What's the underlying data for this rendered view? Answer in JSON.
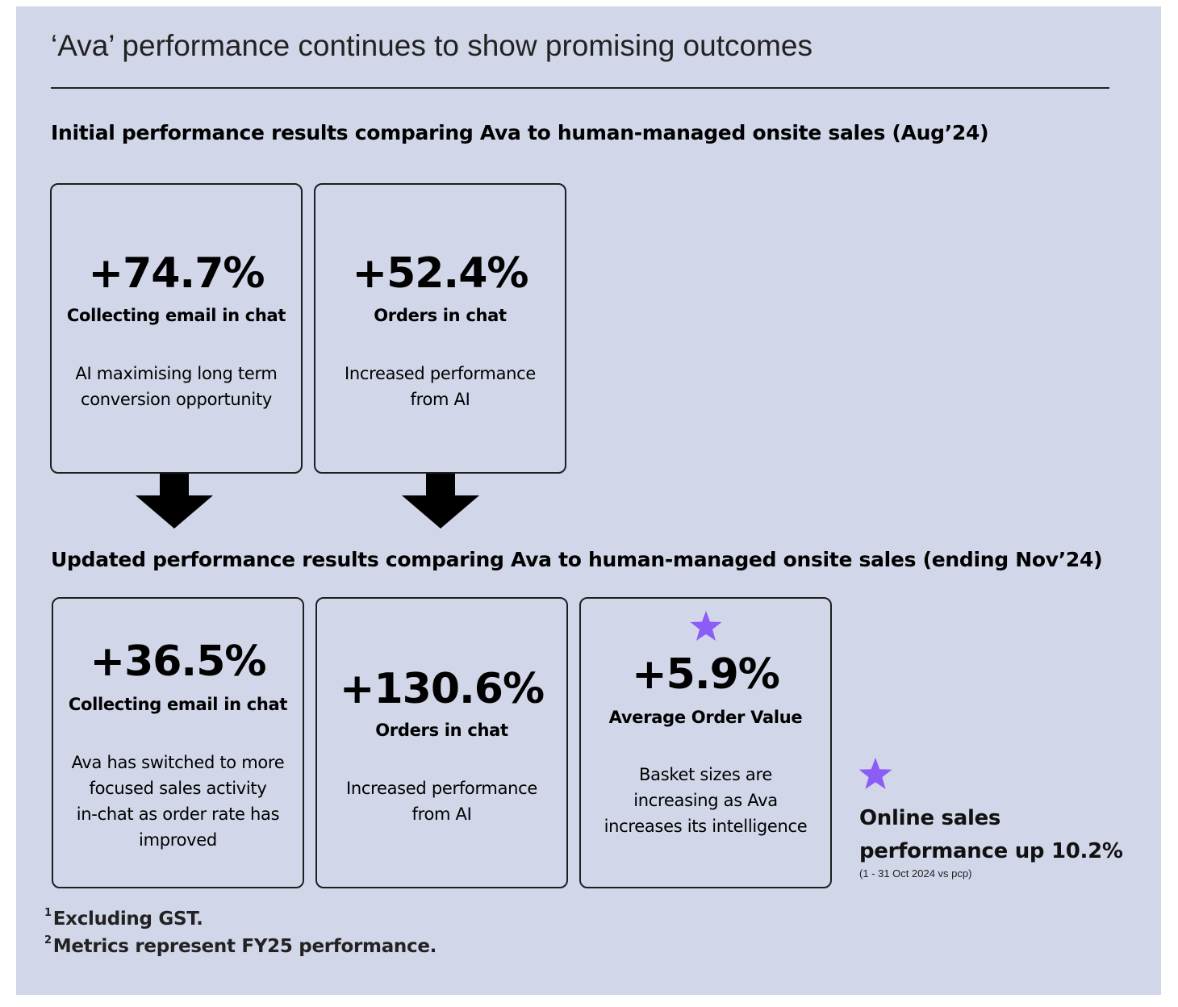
{
  "title": "‘Ava’ performance continues to show promising outcomes",
  "initial": {
    "heading": "Initial performance results comparing Ava to human-managed onsite sales (Aug’24)",
    "cards": [
      {
        "value": "+74.7%",
        "label": "Collecting email in chat",
        "description": [
          "AI maximising long term",
          "conversion opportunity"
        ]
      },
      {
        "value": "+52.4%",
        "label": "Orders in chat",
        "description": [
          "Increased performance",
          "from AI"
        ]
      }
    ]
  },
  "updated": {
    "heading": "Updated performance results comparing Ava to human-managed onsite sales (ending Nov’24)",
    "cards": [
      {
        "value": "+36.5%",
        "label": "Collecting email in chat",
        "description": [
          "Ava has switched to more",
          "focused sales activity",
          "in-chat as order rate has",
          "improved"
        ]
      },
      {
        "value": "+130.6%",
        "label": "Orders in chat",
        "description": [
          "Increased performance",
          "from AI"
        ]
      },
      {
        "value": "+5.9%",
        "label": "Average Order Value",
        "description": [
          "Basket sizes are",
          "increasing as Ava",
          "increases its intelligence"
        ]
      }
    ]
  },
  "online_sales": {
    "line1": "Online sales",
    "line2": "performance up 10.2%",
    "note": "(1  - 31 Oct 2024 vs pcp)"
  },
  "footnotes": [
    {
      "marker": "1",
      "text": "Excluding GST."
    },
    {
      "marker": "2",
      "text": "Metrics represent FY25 performance."
    }
  ],
  "colors": {
    "background": "#d1d6e8",
    "text": "#000000",
    "star": "#8b5cf6",
    "border": "#1f1f1f"
  },
  "icons": {
    "arrow": "down-arrow-icon",
    "star": "star-icon"
  }
}
